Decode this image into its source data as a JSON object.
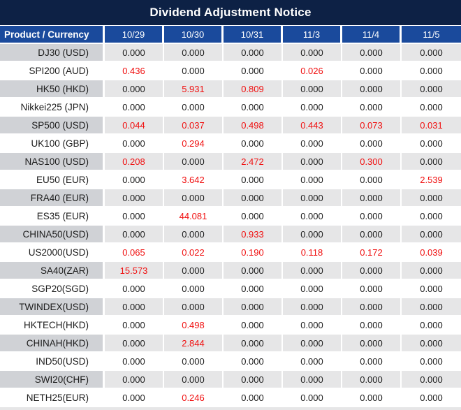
{
  "title": "Dividend Adjustment Notice",
  "table": {
    "product_header": "Product / Currency",
    "date_columns": [
      "10/29",
      "10/30",
      "10/31",
      "11/3",
      "11/4",
      "11/5"
    ],
    "rows": [
      {
        "product": "DJ30 (USD)",
        "values": [
          "0.000",
          "0.000",
          "0.000",
          "0.000",
          "0.000",
          "0.000"
        ]
      },
      {
        "product": "SPI200 (AUD)",
        "values": [
          "0.436",
          "0.000",
          "0.000",
          "0.026",
          "0.000",
          "0.000"
        ]
      },
      {
        "product": "HK50 (HKD)",
        "values": [
          "0.000",
          "5.931",
          "0.809",
          "0.000",
          "0.000",
          "0.000"
        ]
      },
      {
        "product": "Nikkei225 (JPN)",
        "values": [
          "0.000",
          "0.000",
          "0.000",
          "0.000",
          "0.000",
          "0.000"
        ]
      },
      {
        "product": "SP500 (USD)",
        "values": [
          "0.044",
          "0.037",
          "0.498",
          "0.443",
          "0.073",
          "0.031"
        ]
      },
      {
        "product": "UK100 (GBP)",
        "values": [
          "0.000",
          "0.294",
          "0.000",
          "0.000",
          "0.000",
          "0.000"
        ]
      },
      {
        "product": "NAS100 (USD)",
        "values": [
          "0.208",
          "0.000",
          "2.472",
          "0.000",
          "0.300",
          "0.000"
        ]
      },
      {
        "product": "EU50 (EUR)",
        "values": [
          "0.000",
          "3.642",
          "0.000",
          "0.000",
          "0.000",
          "2.539"
        ]
      },
      {
        "product": "FRA40 (EUR)",
        "values": [
          "0.000",
          "0.000",
          "0.000",
          "0.000",
          "0.000",
          "0.000"
        ]
      },
      {
        "product": "ES35 (EUR)",
        "values": [
          "0.000",
          "44.081",
          "0.000",
          "0.000",
          "0.000",
          "0.000"
        ]
      },
      {
        "product": "CHINA50(USD)",
        "values": [
          "0.000",
          "0.000",
          "0.933",
          "0.000",
          "0.000",
          "0.000"
        ]
      },
      {
        "product": "US2000(USD)",
        "values": [
          "0.065",
          "0.022",
          "0.190",
          "0.118",
          "0.172",
          "0.039"
        ]
      },
      {
        "product": "SA40(ZAR)",
        "values": [
          "15.573",
          "0.000",
          "0.000",
          "0.000",
          "0.000",
          "0.000"
        ]
      },
      {
        "product": "SGP20(SGD)",
        "values": [
          "0.000",
          "0.000",
          "0.000",
          "0.000",
          "0.000",
          "0.000"
        ]
      },
      {
        "product": "TWINDEX(USD)",
        "values": [
          "0.000",
          "0.000",
          "0.000",
          "0.000",
          "0.000",
          "0.000"
        ]
      },
      {
        "product": "HKTECH(HKD)",
        "values": [
          "0.000",
          "0.498",
          "0.000",
          "0.000",
          "0.000",
          "0.000"
        ]
      },
      {
        "product": "CHINAH(HKD)",
        "values": [
          "0.000",
          "2.844",
          "0.000",
          "0.000",
          "0.000",
          "0.000"
        ]
      },
      {
        "product": "IND50(USD)",
        "values": [
          "0.000",
          "0.000",
          "0.000",
          "0.000",
          "0.000",
          "0.000"
        ]
      },
      {
        "product": "SWI20(CHF)",
        "values": [
          "0.000",
          "0.000",
          "0.000",
          "0.000",
          "0.000",
          "0.000"
        ]
      },
      {
        "product": "NETH25(EUR)",
        "values": [
          "0.000",
          "0.246",
          "0.000",
          "0.000",
          "0.000",
          "0.000"
        ]
      }
    ]
  },
  "colors": {
    "title_bg": "#0d2145",
    "header_bg": "#1a4a9c",
    "label_cell_bg": "#d0d2d6",
    "data_cell_bg": "#e6e6e7",
    "white_row_bg": "#ffffff",
    "zero_text": "#1c1c1c",
    "nonzero_text": "#f01010"
  }
}
